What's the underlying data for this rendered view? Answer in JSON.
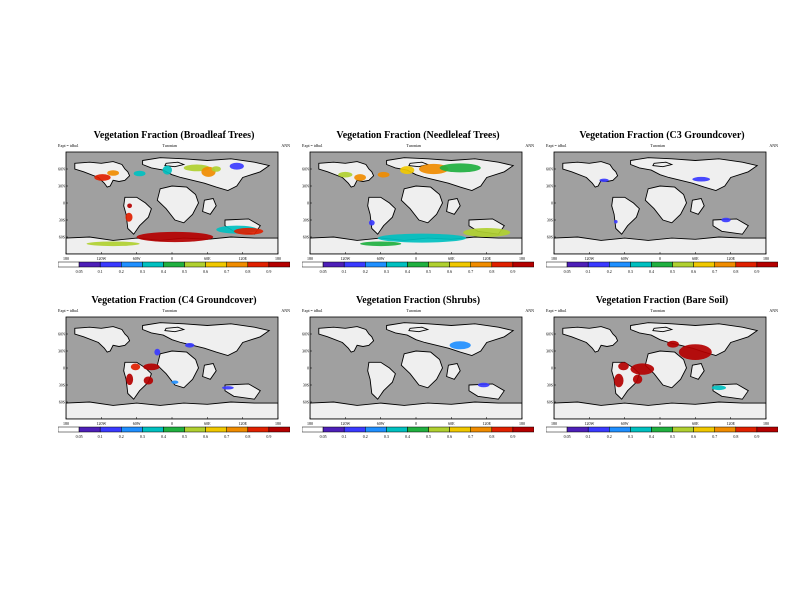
{
  "colorbar": {
    "ticks": [
      "0.05",
      "0.1",
      "0.2",
      "0.3",
      "0.4",
      "0.5",
      "0.6",
      "0.7",
      "0.8",
      "0.9"
    ],
    "colors": [
      "#ffffff",
      "#4d1fb8",
      "#3a3aff",
      "#1f8fff",
      "#00c0c0",
      "#20b040",
      "#b0d030",
      "#f0c800",
      "#f08c00",
      "#e02000",
      "#b40000"
    ]
  },
  "colors": {
    "ocean": "#a0a0a0",
    "land": "#efefef",
    "border": "#000000"
  },
  "axis": {
    "lat_labels": [
      "60N",
      "30N",
      "0",
      "30S",
      "60S"
    ],
    "lon_labels": [
      "180",
      "120W",
      "60W",
      "0",
      "60E",
      "120E",
      "180"
    ]
  },
  "panels": [
    {
      "title": "Vegetation Fraction (Broadleaf Trees)",
      "expt": "Expt = tdba1",
      "model": "Turonian",
      "season": "ANN",
      "fill": [
        {
          "lat": 45,
          "lon": -118,
          "rlat": 6,
          "rlon": 14,
          "value": 0.85
        },
        {
          "lat": 53,
          "lon": -100,
          "rlat": 5,
          "rlon": 10,
          "value": 0.75
        },
        {
          "lat": 52,
          "lon": -55,
          "rlat": 5,
          "rlon": 10,
          "value": 0.3
        },
        {
          "lat": 58,
          "lon": -8,
          "rlat": 8,
          "rlon": 8,
          "value": 0.3
        },
        {
          "lat": 62,
          "lon": 42,
          "rlat": 6,
          "rlon": 22,
          "value": 0.55
        },
        {
          "lat": 55,
          "lon": 62,
          "rlat": 9,
          "rlon": 12,
          "value": 0.7
        },
        {
          "lat": 60,
          "lon": 75,
          "rlat": 5,
          "rlon": 8,
          "value": 0.55
        },
        {
          "lat": 65,
          "lon": 110,
          "rlat": 6,
          "rlon": 12,
          "value": 0.15
        },
        {
          "lat": -5,
          "lon": -72,
          "rlat": 4,
          "rlon": 4,
          "value": 0.9
        },
        {
          "lat": -25,
          "lon": -73,
          "rlat": 8,
          "rlon": 6,
          "value": 0.8
        },
        {
          "lat": -60,
          "lon": 5,
          "rlat": 9,
          "rlon": 65,
          "value": 0.9
        },
        {
          "lat": -47,
          "lon": 110,
          "rlat": 7,
          "rlon": 35,
          "value": 0.35
        },
        {
          "lat": -50,
          "lon": 130,
          "rlat": 6,
          "rlon": 25,
          "value": 0.85
        },
        {
          "lat": -72,
          "lon": -100,
          "rlat": 4,
          "rlon": 45,
          "value": 0.5
        }
      ]
    },
    {
      "title": "Vegetation Fraction (Needleleaf Trees)",
      "expt": "Expt = tdba1",
      "model": "Turonian",
      "season": "ANN",
      "fill": [
        {
          "lat": 50,
          "lon": -120,
          "rlat": 5,
          "rlon": 12,
          "value": 0.55
        },
        {
          "lat": 45,
          "lon": -95,
          "rlat": 6,
          "rlon": 10,
          "value": 0.7
        },
        {
          "lat": 50,
          "lon": -55,
          "rlat": 5,
          "rlon": 10,
          "value": 0.75
        },
        {
          "lat": 58,
          "lon": -15,
          "rlat": 7,
          "rlon": 12,
          "value": 0.6
        },
        {
          "lat": 60,
          "lon": 30,
          "rlat": 9,
          "rlon": 25,
          "value": 0.7
        },
        {
          "lat": 62,
          "lon": 75,
          "rlat": 8,
          "rlon": 35,
          "value": 0.4
        },
        {
          "lat": -35,
          "lon": -75,
          "rlat": 5,
          "rlon": 5,
          "value": 0.1
        },
        {
          "lat": -62,
          "lon": 10,
          "rlat": 8,
          "rlon": 75,
          "value": 0.3
        },
        {
          "lat": -52,
          "lon": 120,
          "rlat": 8,
          "rlon": 40,
          "value": 0.55
        },
        {
          "lat": -72,
          "lon": -60,
          "rlat": 4,
          "rlon": 35,
          "value": 0.4
        }
      ]
    },
    {
      "title": "Vegetation Fraction (C3 Groundcover)",
      "expt": "Expt = tdba1",
      "model": "Turonian",
      "season": "ANN",
      "fill": [
        {
          "lat": 40,
          "lon": -95,
          "rlat": 3,
          "rlon": 8,
          "value": 0.15
        },
        {
          "lat": 42,
          "lon": 70,
          "rlat": 4,
          "rlon": 15,
          "value": 0.15
        },
        {
          "lat": -33,
          "lon": -75,
          "rlat": 3,
          "rlon": 3,
          "value": 0.15
        },
        {
          "lat": -30,
          "lon": 112,
          "rlat": 4,
          "rlon": 8,
          "value": 0.15
        }
      ]
    },
    {
      "title": "Vegetation Fraction (C4 Groundcover)",
      "expt": "Expt = tdba1",
      "model": "Turonian",
      "season": "ANN",
      "fill": [
        {
          "lat": 28,
          "lon": -25,
          "rlat": 6,
          "rlon": 5,
          "value": 0.15
        },
        {
          "lat": 40,
          "lon": 30,
          "rlat": 4,
          "rlon": 8,
          "value": 0.15
        },
        {
          "lat": 2,
          "lon": -62,
          "rlat": 6,
          "rlon": 8,
          "value": 0.85
        },
        {
          "lat": 2,
          "lon": -35,
          "rlat": 6,
          "rlon": 14,
          "value": 0.9
        },
        {
          "lat": -20,
          "lon": -72,
          "rlat": 10,
          "rlon": 6,
          "value": 0.9
        },
        {
          "lat": -22,
          "lon": -40,
          "rlat": 7,
          "rlon": 8,
          "value": 0.9
        },
        {
          "lat": -25,
          "lon": 5,
          "rlat": 3,
          "rlon": 6,
          "value": 0.25
        },
        {
          "lat": -35,
          "lon": 95,
          "rlat": 3,
          "rlon": 10,
          "value": 0.15
        }
      ]
    },
    {
      "title": "Vegetation Fraction (Shrubs)",
      "expt": "Expt = tdba1",
      "model": "Turonian",
      "season": "ANN",
      "fill": [
        {
          "lat": 40,
          "lon": 75,
          "rlat": 7,
          "rlon": 18,
          "value": 0.2
        },
        {
          "lat": -30,
          "lon": 115,
          "rlat": 4,
          "rlon": 10,
          "value": 0.15
        }
      ]
    },
    {
      "title": "Vegetation Fraction (Bare Soil)",
      "expt": "Expt = tdba1",
      "model": "Turonian",
      "season": "ANN",
      "fill": [
        {
          "lat": 42,
          "lon": 22,
          "rlat": 6,
          "rlon": 10,
          "value": 0.95
        },
        {
          "lat": 28,
          "lon": 60,
          "rlat": 14,
          "rlon": 28,
          "value": 0.95
        },
        {
          "lat": 3,
          "lon": -62,
          "rlat": 7,
          "rlon": 9,
          "value": 0.95
        },
        {
          "lat": -2,
          "lon": -30,
          "rlat": 10,
          "rlon": 20,
          "value": 0.95
        },
        {
          "lat": -22,
          "lon": -70,
          "rlat": 12,
          "rlon": 8,
          "value": 0.95
        },
        {
          "lat": -20,
          "lon": -38,
          "rlat": 8,
          "rlon": 8,
          "value": 0.95
        },
        {
          "lat": -35,
          "lon": 100,
          "rlat": 4,
          "rlon": 12,
          "value": 0.3
        }
      ]
    }
  ]
}
